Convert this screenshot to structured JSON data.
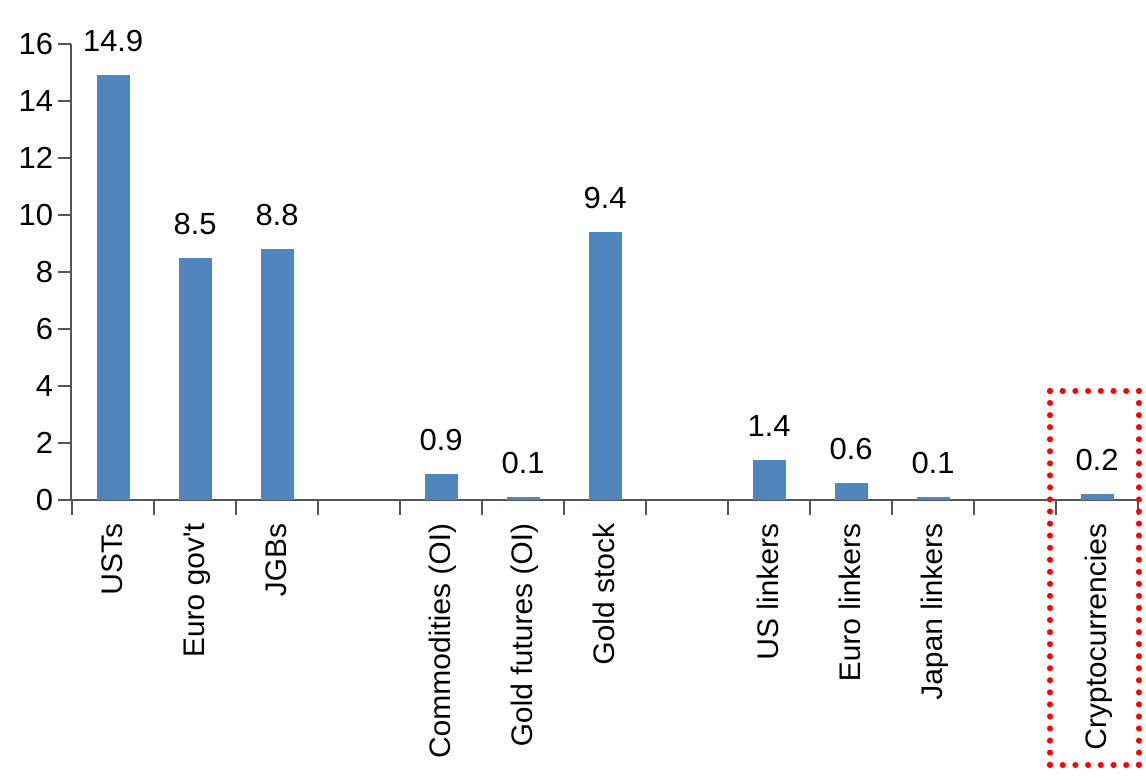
{
  "chart_data": {
    "type": "bar",
    "title": "",
    "xlabel": "",
    "ylabel": "",
    "categories": [
      "USTs",
      "Euro gov't",
      "JGBs",
      "",
      "Commodities (OI)",
      "Gold futures (OI)",
      "Gold stock",
      "",
      "US linkers",
      "Euro linkers",
      "Japan linkers",
      "",
      "Cryptocurrencies"
    ],
    "values": [
      14.9,
      8.5,
      8.8,
      null,
      0.9,
      0.1,
      9.4,
      null,
      1.4,
      0.6,
      0.1,
      null,
      0.2
    ],
    "value_labels": [
      "14.9",
      "8.5",
      "8.8",
      "",
      "0.9",
      "0.1",
      "9.4",
      "",
      "1.4",
      "0.6",
      "0.1",
      "",
      "0.2"
    ],
    "ylim": [
      0,
      16
    ],
    "yticks": [
      0,
      2,
      4,
      6,
      8,
      10,
      12,
      14,
      16
    ],
    "grid": false,
    "legend": false,
    "xlabel_rotation_deg": -90,
    "bar_color": "#4E86BD",
    "axis_color": "#555555",
    "text_color": "#000000",
    "highlight": {
      "category": "Cryptocurrencies",
      "slot_index": 12,
      "box_color": "#FF0000",
      "box_style": "dotted"
    }
  }
}
